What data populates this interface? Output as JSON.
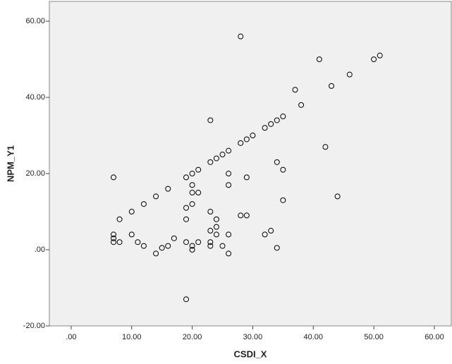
{
  "chart_data": {
    "type": "scatter",
    "x_label": "CSDI_X",
    "y_label": "NPM_Y1",
    "x": [
      28,
      41,
      50,
      51,
      46,
      43,
      37,
      38,
      23,
      35,
      34,
      33,
      32,
      30,
      29,
      28,
      26,
      25,
      24,
      23,
      21,
      20,
      19,
      16,
      14,
      12,
      8,
      7,
      42,
      34,
      35,
      44,
      35,
      26,
      29,
      26,
      20,
      20,
      21,
      20,
      10,
      19,
      19,
      23,
      24,
      24,
      23,
      24,
      28,
      29,
      26,
      32,
      33,
      34,
      23,
      23,
      21,
      25,
      26,
      19,
      20,
      20,
      17,
      16,
      15,
      14,
      12,
      11,
      10,
      8,
      7,
      7,
      7,
      19
    ],
    "y": [
      56,
      50,
      50,
      51,
      46,
      43,
      42,
      38,
      34,
      35,
      34,
      33,
      32,
      30,
      29,
      28,
      26,
      25,
      24,
      23,
      21,
      20,
      19,
      16,
      14,
      12,
      8,
      19,
      27,
      23,
      21,
      14,
      13,
      20,
      19,
      17,
      17,
      15,
      15,
      12,
      10,
      11,
      8,
      10,
      8,
      6,
      5,
      4,
      9,
      9,
      4,
      4,
      5,
      0.5,
      2,
      1,
      2,
      1,
      -1,
      2,
      1,
      0,
      3,
      1,
      0.5,
      -1,
      1,
      2,
      4,
      2,
      4,
      3,
      2,
      -13
    ],
    "color": "#000000",
    "xlim": [
      -3.6,
      62.8
    ],
    "ylim": [
      -20,
      65.2
    ],
    "xticks": [
      {
        "value": 0,
        "label": ".00"
      },
      {
        "value": 10,
        "label": "10.00"
      },
      {
        "value": 20,
        "label": "20.00"
      },
      {
        "value": 30,
        "label": "30.00"
      },
      {
        "value": 40,
        "label": "40.00"
      },
      {
        "value": 50,
        "label": "50.00"
      },
      {
        "value": 60,
        "label": "60.00"
      }
    ],
    "yticks": [
      {
        "value": -20,
        "label": "-20.00"
      },
      {
        "value": 0,
        "label": ".00"
      },
      {
        "value": 20,
        "label": "20.00"
      },
      {
        "value": 40,
        "label": "40.00"
      },
      {
        "value": 60,
        "label": "60.00"
      }
    ]
  }
}
